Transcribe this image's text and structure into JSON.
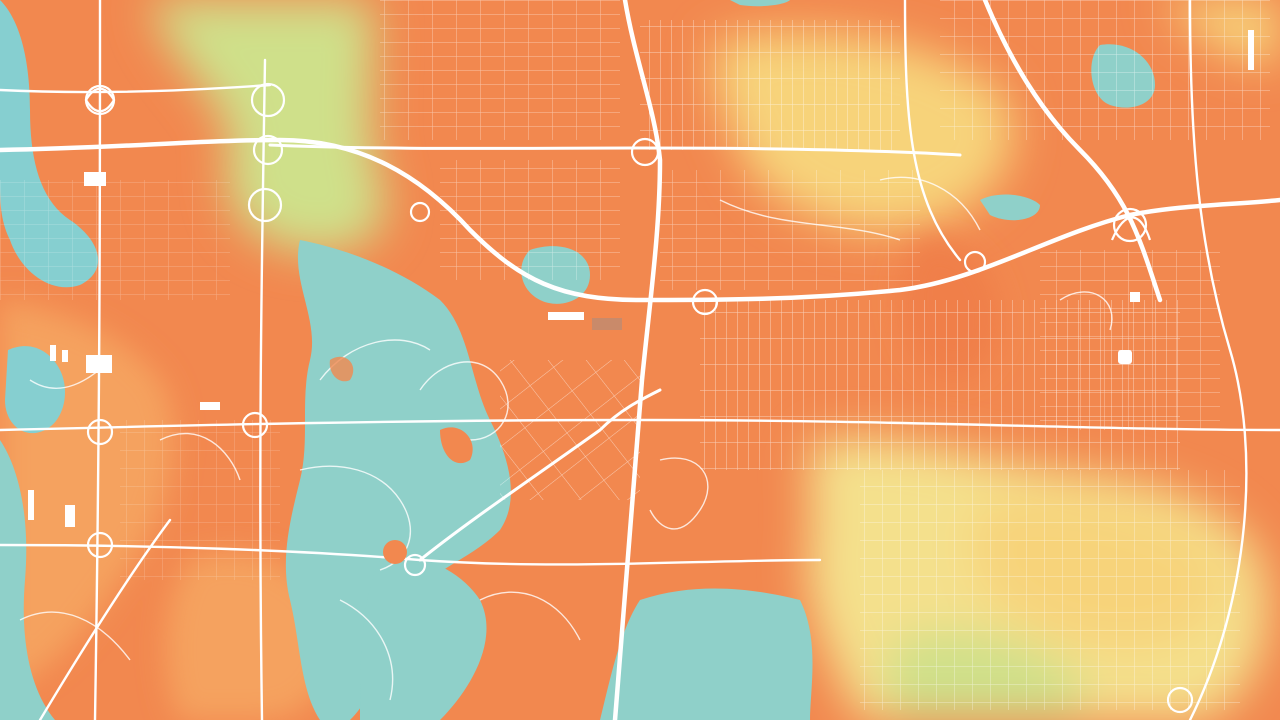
{
  "map": {
    "palette": {
      "base_orange": "#f2884f",
      "deep_orange": "#f07f4a",
      "light_orange": "#f5a25e",
      "yellow": "#f7d37a",
      "pale_yellow": "#f4e08c",
      "yellow_green": "#cfe08a",
      "water_teal": "#8fd0c9",
      "water_blue": "#86cfd0",
      "road_white": "#ffffff"
    },
    "icons": {
      "highway_interchange": "interchange-icon",
      "water_body": "water-icon",
      "building_marker": "building-icon"
    }
  }
}
